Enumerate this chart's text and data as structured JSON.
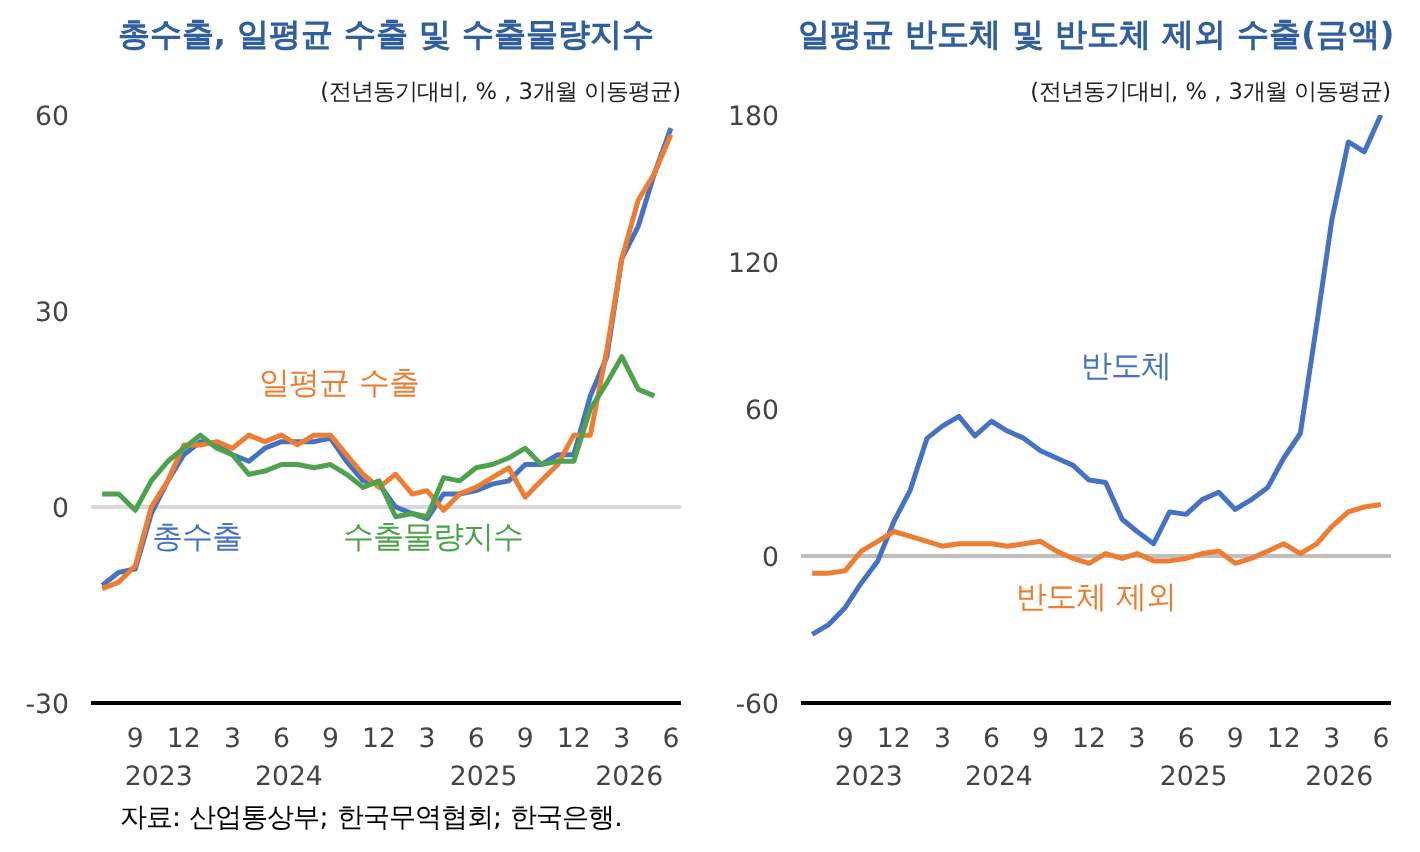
{
  "chart_data": [
    {
      "type": "line",
      "title": "총수출, 일평균 수출 및 수출물량지수",
      "subtitle": "(전년동기대비, % , 3개월 이동평균)",
      "x": [
        "2023-07",
        "2023-08",
        "2023-09",
        "2023-10",
        "2023-11",
        "2023-12",
        "2024-01",
        "2024-02",
        "2024-03",
        "2024-04",
        "2024-05",
        "2024-06",
        "2024-07",
        "2024-08",
        "2024-09",
        "2024-10",
        "2024-11",
        "2024-12",
        "2025-01",
        "2025-02",
        "2025-03",
        "2025-04",
        "2025-05",
        "2025-06",
        "2025-07",
        "2025-08",
        "2025-09",
        "2025-10",
        "2025-11",
        "2025-12",
        "2026-01",
        "2026-02",
        "2026-03",
        "2026-04",
        "2026-05",
        "2026-06"
      ],
      "series": [
        {
          "name": "총수출",
          "color": "#4472c4",
          "values": [
            -12,
            -10,
            -9.5,
            -1,
            4,
            8,
            10,
            9.5,
            8,
            7,
            9,
            10,
            10,
            10,
            10.5,
            7,
            4,
            3.5,
            0,
            -1,
            -1.8,
            2,
            2,
            2.5,
            3.5,
            4,
            6.5,
            6.5,
            8,
            8,
            17,
            23,
            38,
            43,
            51,
            58
          ]
        },
        {
          "name": "일평균 수출",
          "color": "#ed7d31",
          "values": [
            -12.5,
            -11.5,
            -9,
            0,
            4,
            9.5,
            9.5,
            10,
            9,
            11,
            10,
            11,
            9.5,
            11,
            11,
            8,
            5,
            3,
            5,
            2,
            2.5,
            -0.5,
            2,
            3,
            4.5,
            6,
            1.5,
            4,
            6.5,
            11,
            11,
            24,
            38,
            47,
            51,
            57
          ]
        },
        {
          "name": "수출물량지수",
          "color": "#4ea24e",
          "values": [
            2,
            2,
            -0.5,
            4,
            7,
            9,
            11,
            9,
            8,
            5,
            5.5,
            6.5,
            6.5,
            6,
            6.5,
            5,
            3,
            4,
            -1.5,
            -1,
            -1.5,
            4.5,
            4,
            6,
            6.5,
            7.5,
            9,
            6.5,
            7,
            7,
            15,
            19,
            23,
            18,
            17,
            null
          ]
        }
      ],
      "xlim": [
        "2023-06-10",
        "2026-06-20"
      ],
      "xticks": [
        {
          "value": "2023-09",
          "label": "9"
        },
        {
          "value": "2023-12",
          "label": "12"
        },
        {
          "value": "2024-03",
          "label": "3"
        },
        {
          "value": "2024-06",
          "label": "6"
        },
        {
          "value": "2024-09",
          "label": "9"
        },
        {
          "value": "2024-12",
          "label": "12"
        },
        {
          "value": "2025-03",
          "label": "3"
        },
        {
          "value": "2025-06",
          "label": "6"
        },
        {
          "value": "2025-09",
          "label": "9"
        },
        {
          "value": "2025-12",
          "label": "12"
        },
        {
          "value": "2026-03",
          "label": "3"
        },
        {
          "value": "2026-06",
          "label": "6"
        }
      ],
      "x2ticks": [
        {
          "value": "2023-10-15",
          "label": "2023"
        },
        {
          "value": "2024-06-15",
          "label": "2024"
        },
        {
          "value": "2025-06-15",
          "label": "2025"
        },
        {
          "value": "2026-03-15",
          "label": "2026"
        }
      ],
      "x2lim": [
        "2023-06-10",
        "2026-06-20"
      ],
      "ylim": [
        -30,
        60
      ],
      "yticks": [
        -30,
        0,
        30,
        60
      ],
      "ref_lines": [
        {
          "axis": "y",
          "value": 0,
          "color": "#d9d9d9"
        }
      ],
      "annotations": [
        "자료: 산업통상부; 한국무역협회; 한국은행."
      ]
    },
    {
      "type": "line",
      "title": "일평균 반도체 및 반도체 제외 수출(금액)",
      "subtitle": "(전년동기대비, % , 3개월 이동평균)",
      "x": [
        "2023-07",
        "2023-08",
        "2023-09",
        "2023-10",
        "2023-11",
        "2023-12",
        "2024-01",
        "2024-02",
        "2024-03",
        "2024-04",
        "2024-05",
        "2024-06",
        "2024-07",
        "2024-08",
        "2024-09",
        "2024-10",
        "2024-11",
        "2024-12",
        "2025-01",
        "2025-02",
        "2025-03",
        "2025-04",
        "2025-05",
        "2025-06",
        "2025-07",
        "2025-08",
        "2025-09",
        "2025-10",
        "2025-11",
        "2025-12",
        "2026-01",
        "2026-02",
        "2026-03",
        "2026-04",
        "2026-05",
        "2026-06"
      ],
      "series": [
        {
          "name": "반도체",
          "color": "#4472c4",
          "values": [
            -32,
            -28,
            -21,
            -11,
            -2,
            14,
            27,
            48,
            53,
            57,
            49,
            55,
            51,
            48,
            43,
            40,
            37,
            31,
            30,
            15,
            10,
            5,
            18,
            17,
            23,
            26,
            19,
            23,
            28,
            40,
            50,
            95,
            137,
            169,
            165,
            180
          ]
        },
        {
          "name": "반도체 제외",
          "color": "#ed7d31",
          "values": [
            -7,
            -7,
            -6,
            2,
            6,
            10,
            8,
            6,
            4,
            5,
            5,
            5,
            4,
            5,
            6,
            2,
            -1,
            -3,
            1,
            -1,
            1,
            -2,
            -2,
            -1,
            1,
            2,
            -3,
            -1,
            2,
            5,
            1,
            5,
            12,
            18,
            20,
            21
          ]
        }
      ],
      "xlim": [
        "2023-06-10",
        "2026-06-20"
      ],
      "xticks": [
        {
          "value": "2023-09",
          "label": "9"
        },
        {
          "value": "2023-12",
          "label": "12"
        },
        {
          "value": "2024-03",
          "label": "3"
        },
        {
          "value": "2024-06",
          "label": "6"
        },
        {
          "value": "2024-09",
          "label": "9"
        },
        {
          "value": "2024-12",
          "label": "12"
        },
        {
          "value": "2025-03",
          "label": "3"
        },
        {
          "value": "2025-06",
          "label": "6"
        },
        {
          "value": "2025-09",
          "label": "9"
        },
        {
          "value": "2025-12",
          "label": "12"
        },
        {
          "value": "2026-03",
          "label": "3"
        },
        {
          "value": "2026-06",
          "label": "6"
        }
      ],
      "x2ticks": [
        {
          "value": "2023-10-15",
          "label": "2023"
        },
        {
          "value": "2024-06-15",
          "label": "2024"
        },
        {
          "value": "2025-06-15",
          "label": "2025"
        },
        {
          "value": "2026-03-15",
          "label": "2026"
        }
      ],
      "x2lim": [
        "2023-06-10",
        "2026-06-20"
      ],
      "ylim": [
        -60,
        180
      ],
      "yticks": [
        -60,
        0,
        60,
        120,
        180
      ],
      "ref_lines": [
        {
          "axis": "y",
          "value": 0,
          "color": "#bfbfbf"
        }
      ]
    }
  ]
}
